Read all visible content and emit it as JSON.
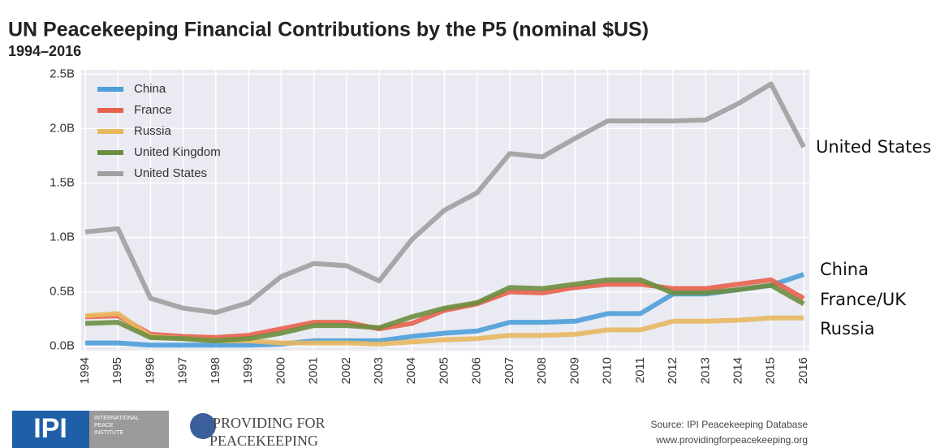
{
  "chart_data": {
    "type": "line",
    "title": "UN Peacekeeping Financial Contributions by the P5 (nominal $US)",
    "subtitle": "1994–2016",
    "categories": [
      "1994",
      "1995",
      "1996",
      "1997",
      "1998",
      "1999",
      "2000",
      "2001",
      "2002",
      "2003",
      "2004",
      "2005",
      "2006",
      "2007",
      "2008",
      "2009",
      "2010",
      "2011",
      "2012",
      "2013",
      "2014",
      "2015",
      "2016"
    ],
    "series": [
      {
        "name": "China",
        "color": "#4c9fd9",
        "values": [
          0.03,
          0.03,
          0.01,
          0.01,
          0.01,
          0.01,
          0.02,
          0.05,
          0.05,
          0.05,
          0.09,
          0.12,
          0.14,
          0.22,
          0.22,
          0.23,
          0.3,
          0.3,
          0.48,
          0.48,
          0.52,
          0.56,
          0.66
        ]
      },
      {
        "name": "France",
        "color": "#e8604c",
        "values": [
          0.27,
          0.28,
          0.11,
          0.09,
          0.08,
          0.1,
          0.16,
          0.22,
          0.22,
          0.16,
          0.21,
          0.33,
          0.39,
          0.5,
          0.49,
          0.54,
          0.57,
          0.57,
          0.53,
          0.53,
          0.57,
          0.61,
          0.44
        ]
      },
      {
        "name": "Russia",
        "color": "#e8b860",
        "values": [
          0.28,
          0.3,
          0.09,
          0.07,
          0.05,
          0.05,
          0.03,
          0.03,
          0.03,
          0.02,
          0.04,
          0.06,
          0.07,
          0.1,
          0.1,
          0.11,
          0.15,
          0.15,
          0.23,
          0.23,
          0.24,
          0.26,
          0.26
        ]
      },
      {
        "name": "United Kingdom",
        "color": "#6b8e3f",
        "values": [
          0.21,
          0.22,
          0.08,
          0.07,
          0.05,
          0.07,
          0.12,
          0.19,
          0.19,
          0.17,
          0.27,
          0.35,
          0.4,
          0.54,
          0.53,
          0.57,
          0.61,
          0.61,
          0.49,
          0.49,
          0.52,
          0.56,
          0.39
        ]
      },
      {
        "name": "United States",
        "color": "#a0a0a0",
        "values": [
          1.05,
          1.08,
          0.44,
          0.35,
          0.31,
          0.4,
          0.64,
          0.76,
          0.74,
          0.6,
          0.98,
          1.25,
          1.41,
          1.77,
          1.74,
          1.91,
          2.07,
          2.07,
          2.07,
          2.08,
          2.23,
          2.41,
          1.83
        ]
      }
    ],
    "ylim": [
      -0.04,
      2.54
    ],
    "yticks": [
      {
        "value": 0,
        "label": "0.0B"
      },
      {
        "value": 0.5,
        "label": "0.5B"
      },
      {
        "value": 1,
        "label": "1.0B"
      },
      {
        "value": 1.5,
        "label": "1.5B"
      },
      {
        "value": 2,
        "label": "2.0B"
      },
      {
        "value": 2.5,
        "label": "2.5B"
      }
    ],
    "grid": true,
    "legend": "upper left",
    "annotations": [
      "United States",
      "China",
      "France/UK",
      "Russia"
    ],
    "source": [
      "Source: IPI Peacekeeping Database",
      "www.providingforpeacekeeping.org"
    ],
    "logos": [
      "IPI",
      "INTERNATIONAL",
      "PEACE",
      "INSTITUTE",
      "PROVIDING FOR",
      "PEACEKEEPING"
    ]
  }
}
